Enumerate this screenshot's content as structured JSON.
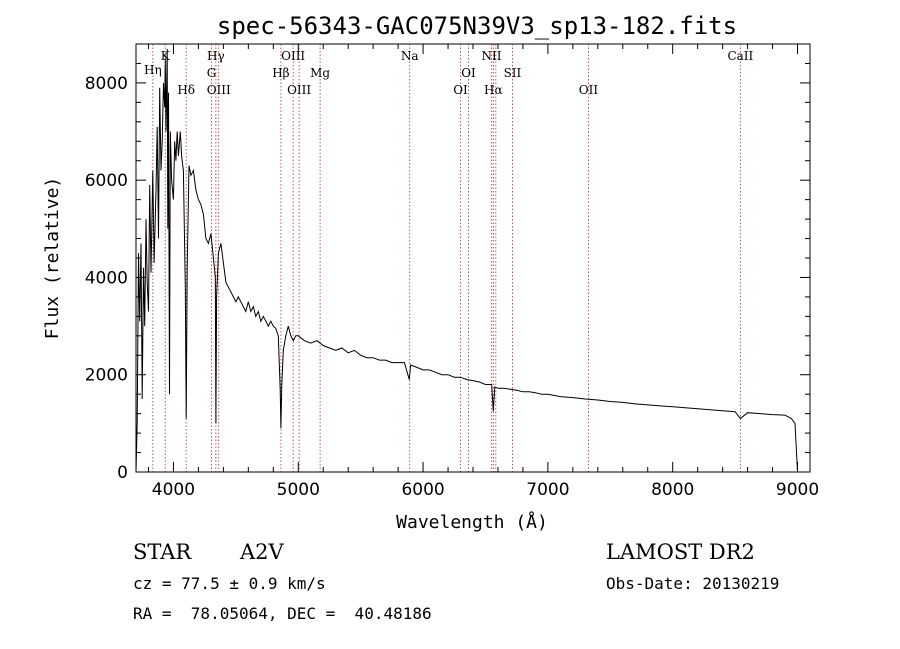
{
  "chart_data": {
    "type": "line",
    "title": "spec-56343-GAC075N39V3_sp13-182.fits",
    "xlabel": "Wavelength (Å)",
    "ylabel": "Flux (relative)",
    "xlim": [
      3700,
      9100
    ],
    "ylim": [
      0,
      8800
    ],
    "xticks": [
      4000,
      5000,
      6000,
      7000,
      8000,
      9000
    ],
    "yticks": [
      0,
      2000,
      4000,
      6000,
      8000
    ],
    "grid": false,
    "series": [
      {
        "color": "#000000",
        "points": [
          [
            3700,
            0
          ],
          [
            3710,
            1000
          ],
          [
            3720,
            4500
          ],
          [
            3730,
            3100
          ],
          [
            3740,
            4700
          ],
          [
            3750,
            1500
          ],
          [
            3760,
            4200
          ],
          [
            3770,
            3000
          ],
          [
            3780,
            5200
          ],
          [
            3790,
            3900
          ],
          [
            3800,
            3300
          ],
          [
            3810,
            5900
          ],
          [
            3820,
            4100
          ],
          [
            3835,
            6200
          ],
          [
            3845,
            4300
          ],
          [
            3860,
            5800
          ],
          [
            3870,
            7100
          ],
          [
            3880,
            4800
          ],
          [
            3890,
            7900
          ],
          [
            3900,
            6200
          ],
          [
            3910,
            6800
          ],
          [
            3920,
            8000
          ],
          [
            3930,
            7500
          ],
          [
            3935,
            8500
          ],
          [
            3940,
            7000
          ],
          [
            3950,
            8700
          ],
          [
            3955,
            5000
          ],
          [
            3960,
            7800
          ],
          [
            3968,
            1600
          ],
          [
            3975,
            7000
          ],
          [
            3985,
            6000
          ],
          [
            4000,
            5600
          ],
          [
            4010,
            6800
          ],
          [
            4020,
            6400
          ],
          [
            4030,
            7000
          ],
          [
            4040,
            6500
          ],
          [
            4055,
            7000
          ],
          [
            4065,
            6500
          ],
          [
            4080,
            6200
          ],
          [
            4095,
            3800
          ],
          [
            4102,
            1100
          ],
          [
            4110,
            4200
          ],
          [
            4125,
            6300
          ],
          [
            4140,
            6100
          ],
          [
            4160,
            6200
          ],
          [
            4180,
            5800
          ],
          [
            4200,
            5600
          ],
          [
            4220,
            5500
          ],
          [
            4240,
            5300
          ],
          [
            4260,
            4800
          ],
          [
            4280,
            4700
          ],
          [
            4300,
            4900
          ],
          [
            4320,
            4400
          ],
          [
            4335,
            4000
          ],
          [
            4340,
            1000
          ],
          [
            4346,
            3600
          ],
          [
            4360,
            4500
          ],
          [
            4380,
            4700
          ],
          [
            4400,
            4300
          ],
          [
            4420,
            3900
          ],
          [
            4440,
            3800
          ],
          [
            4460,
            3700
          ],
          [
            4480,
            3600
          ],
          [
            4500,
            3500
          ],
          [
            4520,
            3600
          ],
          [
            4540,
            3500
          ],
          [
            4560,
            3400
          ],
          [
            4580,
            3300
          ],
          [
            4600,
            3500
          ],
          [
            4620,
            3300
          ],
          [
            4640,
            3400
          ],
          [
            4660,
            3200
          ],
          [
            4680,
            3300
          ],
          [
            4700,
            3100
          ],
          [
            4720,
            3200
          ],
          [
            4740,
            3100
          ],
          [
            4760,
            3000
          ],
          [
            4780,
            3100
          ],
          [
            4800,
            3000
          ],
          [
            4820,
            2950
          ],
          [
            4840,
            2800
          ],
          [
            4850,
            2100
          ],
          [
            4855,
            1700
          ],
          [
            4861,
            900
          ],
          [
            4868,
            1800
          ],
          [
            4880,
            2500
          ],
          [
            4900,
            2800
          ],
          [
            4920,
            3000
          ],
          [
            4940,
            2800
          ],
          [
            4960,
            2700
          ],
          [
            4980,
            2800
          ],
          [
            5000,
            2800
          ],
          [
            5050,
            2700
          ],
          [
            5100,
            2650
          ],
          [
            5150,
            2700
          ],
          [
            5200,
            2600
          ],
          [
            5250,
            2550
          ],
          [
            5300,
            2500
          ],
          [
            5350,
            2550
          ],
          [
            5400,
            2450
          ],
          [
            5450,
            2500
          ],
          [
            5500,
            2400
          ],
          [
            5550,
            2350
          ],
          [
            5600,
            2350
          ],
          [
            5650,
            2300
          ],
          [
            5700,
            2300
          ],
          [
            5750,
            2250
          ],
          [
            5800,
            2250
          ],
          [
            5850,
            2250
          ],
          [
            5890,
            1900
          ],
          [
            5900,
            2200
          ],
          [
            5950,
            2150
          ],
          [
            6000,
            2100
          ],
          [
            6050,
            2100
          ],
          [
            6100,
            2050
          ],
          [
            6150,
            2000
          ],
          [
            6200,
            2000
          ],
          [
            6250,
            1950
          ],
          [
            6300,
            1950
          ],
          [
            6350,
            1900
          ],
          [
            6400,
            1880
          ],
          [
            6450,
            1850
          ],
          [
            6500,
            1800
          ],
          [
            6550,
            1800
          ],
          [
            6563,
            1250
          ],
          [
            6575,
            1750
          ],
          [
            6600,
            1720
          ],
          [
            6650,
            1720
          ],
          [
            6700,
            1700
          ],
          [
            6750,
            1680
          ],
          [
            6800,
            1650
          ],
          [
            6850,
            1650
          ],
          [
            6900,
            1630
          ],
          [
            6950,
            1600
          ],
          [
            7000,
            1600
          ],
          [
            7100,
            1550
          ],
          [
            7200,
            1530
          ],
          [
            7300,
            1500
          ],
          [
            7400,
            1480
          ],
          [
            7500,
            1450
          ],
          [
            7600,
            1430
          ],
          [
            7700,
            1400
          ],
          [
            7800,
            1380
          ],
          [
            7900,
            1360
          ],
          [
            8000,
            1340
          ],
          [
            8100,
            1320
          ],
          [
            8200,
            1300
          ],
          [
            8300,
            1280
          ],
          [
            8400,
            1260
          ],
          [
            8500,
            1240
          ],
          [
            8542,
            1100
          ],
          [
            8600,
            1220
          ],
          [
            8700,
            1200
          ],
          [
            8800,
            1180
          ],
          [
            8900,
            1170
          ],
          [
            8950,
            1100
          ],
          [
            8980,
            1000
          ],
          [
            9000,
            0
          ]
        ]
      }
    ],
    "lines": [
      {
        "label": "Hη",
        "x": 3835
      },
      {
        "label": "K",
        "x": 3934
      },
      {
        "label": "Hδ",
        "x": 4102
      },
      {
        "label": "Hγ",
        "x": 4340
      },
      {
        "label": "G",
        "x": 4305
      },
      {
        "label": "OIII",
        "x": 4363
      },
      {
        "label": "Hβ",
        "x": 4861
      },
      {
        "label": "OIII",
        "x": 4959
      },
      {
        "label": "OIII",
        "x": 5007
      },
      {
        "label": "Mg",
        "x": 5175
      },
      {
        "label": "Na",
        "x": 5893
      },
      {
        "label": "OI",
        "x": 6300
      },
      {
        "label": "OI",
        "x": 6364
      },
      {
        "label": "NII",
        "x": 6548
      },
      {
        "label": "Hα",
        "x": 6563
      },
      {
        "label": "NII",
        "x": 6583
      },
      {
        "label": "SII",
        "x": 6716
      },
      {
        "label": "OII",
        "x": 7325
      },
      {
        "label": "CaII",
        "x": 8542
      }
    ]
  },
  "info": {
    "class": "STAR",
    "subclass": "A2V",
    "survey": "LAMOST DR2",
    "cz": "cz = 77.5 ± 0.9 km/s",
    "obsdate": "Obs-Date: 20130219",
    "radec": "RA =  78.05064, DEC =  40.48186"
  }
}
